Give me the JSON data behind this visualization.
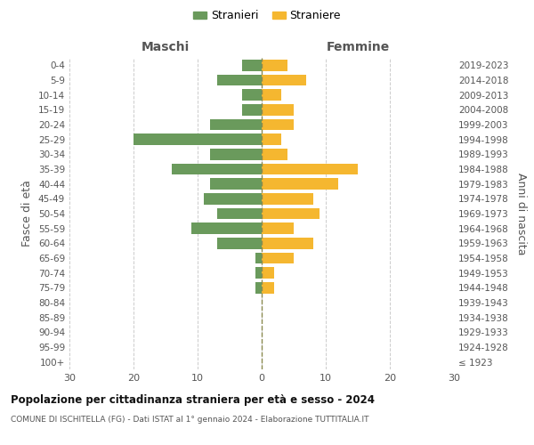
{
  "age_groups": [
    "100+",
    "95-99",
    "90-94",
    "85-89",
    "80-84",
    "75-79",
    "70-74",
    "65-69",
    "60-64",
    "55-59",
    "50-54",
    "45-49",
    "40-44",
    "35-39",
    "30-34",
    "25-29",
    "20-24",
    "15-19",
    "10-14",
    "5-9",
    "0-4"
  ],
  "birth_years": [
    "≤ 1923",
    "1924-1928",
    "1929-1933",
    "1934-1938",
    "1939-1943",
    "1944-1948",
    "1949-1953",
    "1954-1958",
    "1959-1963",
    "1964-1968",
    "1969-1973",
    "1974-1978",
    "1979-1983",
    "1984-1988",
    "1989-1993",
    "1994-1998",
    "1999-2003",
    "2004-2008",
    "2009-2013",
    "2014-2018",
    "2019-2023"
  ],
  "maschi": [
    0,
    0,
    0,
    0,
    0,
    1,
    1,
    1,
    7,
    11,
    7,
    9,
    8,
    14,
    8,
    20,
    8,
    3,
    3,
    7,
    3
  ],
  "femmine": [
    0,
    0,
    0,
    0,
    0,
    2,
    2,
    5,
    8,
    5,
    9,
    8,
    12,
    15,
    4,
    3,
    5,
    5,
    3,
    7,
    4
  ],
  "maschi_color": "#6a9a5c",
  "femmine_color": "#f5b730",
  "bar_height": 0.75,
  "xlim": 30,
  "title": "Popolazione per cittadinanza straniera per età e sesso - 2024",
  "subtitle": "COMUNE DI ISCHITELLA (FG) - Dati ISTAT al 1° gennaio 2024 - Elaborazione TUTTITALIA.IT",
  "ylabel_left": "Fasce di età",
  "ylabel_right": "Anni di nascita",
  "xlabel_maschi": "Maschi",
  "xlabel_femmine": "Femmine",
  "legend_maschi": "Stranieri",
  "legend_femmine": "Straniere",
  "background_color": "#ffffff",
  "grid_color": "#cccccc",
  "text_color": "#555555"
}
